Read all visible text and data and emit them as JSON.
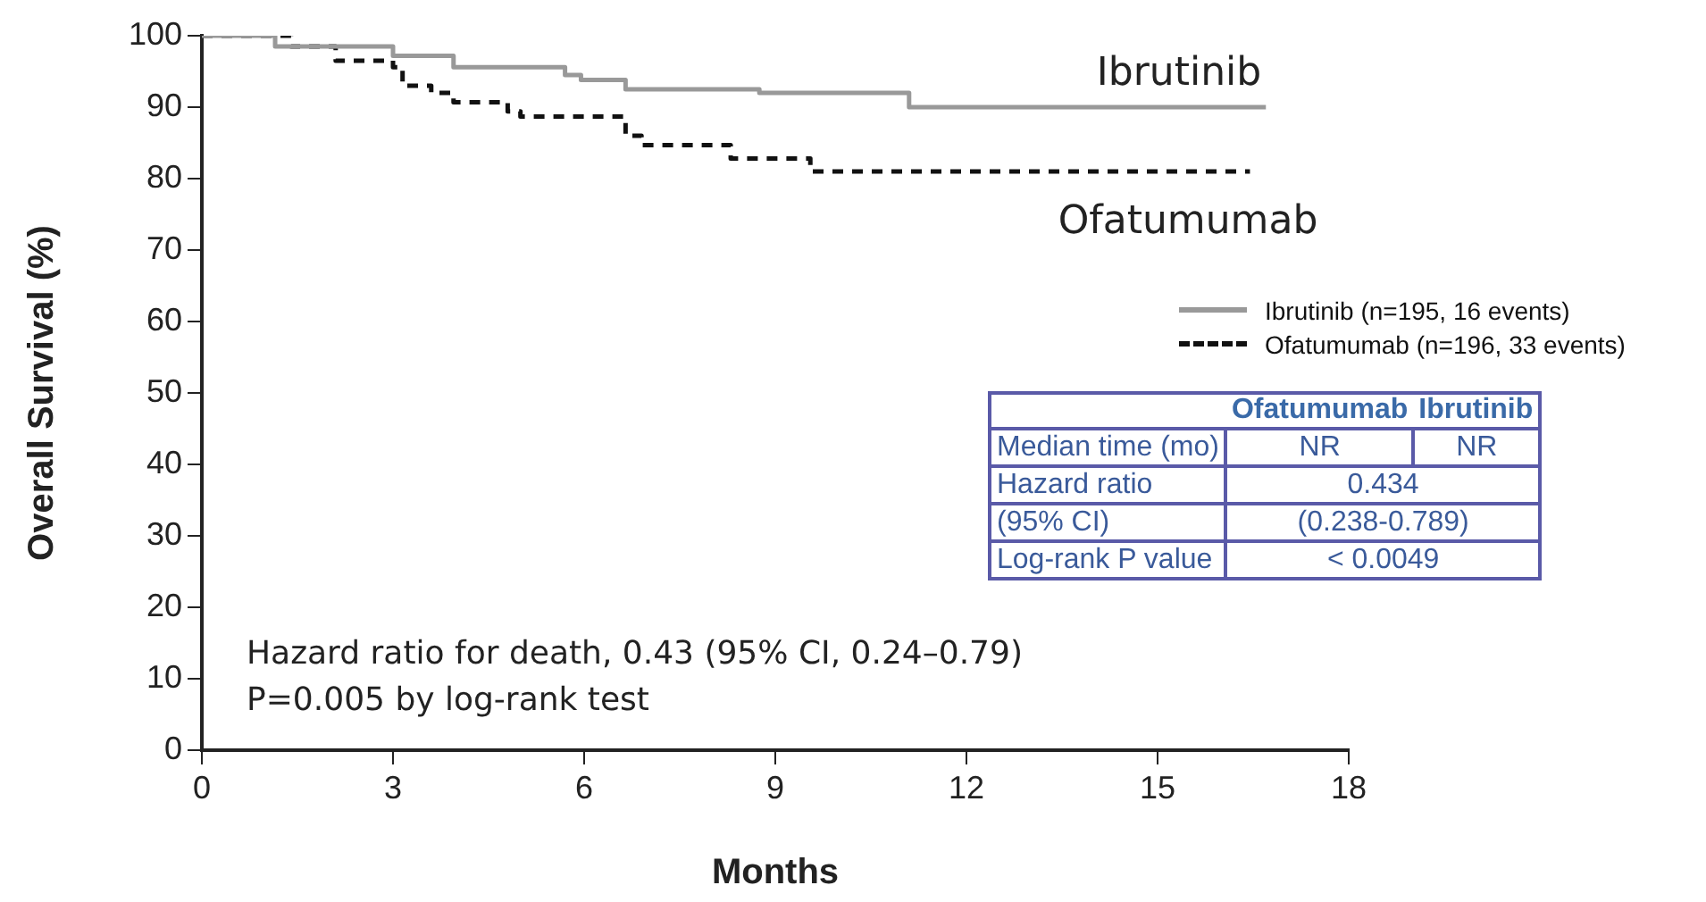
{
  "chart_data": [
    {
      "type": "step",
      "xlabel": "Months",
      "ylabel": "Overall Survival (%)",
      "xlim": [
        0,
        18
      ],
      "xticks": [
        0,
        3,
        6,
        9,
        12,
        15,
        18
      ],
      "ylim": [
        0,
        100
      ],
      "yticks": [
        0,
        10,
        20,
        30,
        40,
        50,
        60,
        70,
        80,
        90,
        100
      ],
      "grid": false,
      "legend": "right",
      "marker": "none",
      "series": [
        {
          "name": "Ibrutinib (n=195, 16 events)",
          "color": "#999999",
          "line_style": "solid",
          "x": [
            0,
            1.15,
            3.0,
            3.95,
            5.7,
            5.95,
            6.65,
            8.75,
            11.1,
            16.7
          ],
          "values": [
            100,
            98.5,
            97.2,
            95.6,
            94.5,
            93.8,
            92.5,
            92,
            90,
            90
          ]
        },
        {
          "name": "Ofatumumab (n=196, 33 events)",
          "color": "#111111",
          "line_style": "dashed",
          "x": [
            0,
            1.4,
            2.1,
            3.0,
            3.15,
            3.6,
            3.95,
            4.8,
            5.0,
            6.65,
            6.9,
            8.3,
            9.55,
            16.45
          ],
          "values": [
            100,
            98.5,
            96.5,
            95.6,
            93,
            92,
            90.7,
            89.4,
            88.7,
            86,
            84.7,
            82.8,
            81,
            81
          ]
        }
      ],
      "annotations": [
        "Ibrutinib",
        "Ofatumumab",
        "Hazard ratio for death, 0.43 (95% CI, 0.24–0.79)",
        "P=0.005 by log-rank test"
      ]
    },
    {
      "type": "other",
      "annotations": [
        "Ofatumumab",
        "Ibrutinib",
        "Median time (mo)",
        "NR",
        "NR",
        "Hazard ratio",
        "0.434",
        "(95% CI)",
        "(0.238-0.789)",
        "Log-rank P value",
        "< 0.0049"
      ]
    }
  ]
}
